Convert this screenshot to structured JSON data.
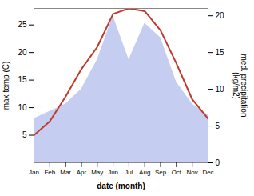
{
  "chart_data": {
    "type": "line",
    "categories": [
      "Jan",
      "Feb",
      "Mar",
      "Apr",
      "May",
      "Jun",
      "Jul",
      "Aug",
      "Sep",
      "Oct",
      "Nov",
      "Dec"
    ],
    "xlabel": "date (month)",
    "ylabel": "max temp (C)",
    "y2label": "med. precipitation\n(kg/m2)",
    "ylim": [
      0,
      28
    ],
    "yticks": [
      5,
      10,
      15,
      20,
      25
    ],
    "y2lim": [
      0,
      21
    ],
    "y2ticks": [
      0,
      5,
      10,
      15,
      20
    ],
    "grid": false,
    "series": [
      {
        "type": "area",
        "axis": "y2",
        "color": "#c5cdf0",
        "values": [
          6.0,
          7.0,
          8.0,
          10.0,
          14.0,
          20.0,
          14.0,
          19.0,
          17.0,
          11.0,
          8.0,
          6.5
        ]
      },
      {
        "type": "line",
        "color": "#c0392b",
        "values": [
          5.0,
          7.5,
          12.0,
          17.0,
          21.0,
          27.0,
          28.0,
          27.5,
          24.0,
          18.0,
          11.5,
          8.0
        ]
      }
    ]
  }
}
